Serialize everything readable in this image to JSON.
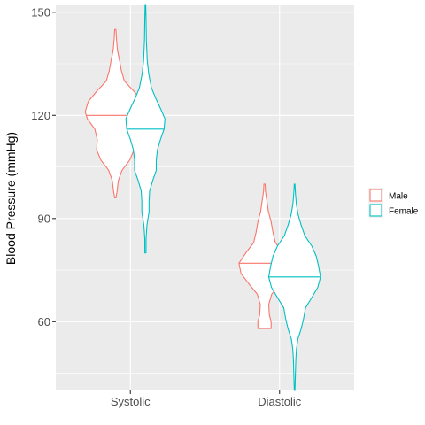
{
  "chart_data": {
    "type": "violin",
    "title": "",
    "xlabel": "",
    "ylabel": "Blood Pressure (mmHg)",
    "categories": [
      "Systolic",
      "Diastolic"
    ],
    "ylim": [
      40,
      152
    ],
    "y_ticks": [
      60,
      90,
      120,
      150
    ],
    "y_tick_labels": [
      "60",
      "90",
      "120",
      "150"
    ],
    "grid": true,
    "legend_position": "right",
    "series": [
      {
        "name": "Male",
        "color": "#F8766D",
        "groups": [
          {
            "category": "Systolic",
            "min": 96,
            "max": 145,
            "median": 120,
            "density": [
              [
                96,
                0.02
              ],
              [
                98,
                0.06
              ],
              [
                101,
                0.1
              ],
              [
                104,
                0.22
              ],
              [
                107,
                0.48
              ],
              [
                110,
                0.62
              ],
              [
                113,
                0.6
              ],
              [
                116,
                0.68
              ],
              [
                119,
                0.93
              ],
              [
                121,
                1.0
              ],
              [
                124,
                0.9
              ],
              [
                127,
                0.62
              ],
              [
                130,
                0.3
              ],
              [
                133,
                0.2
              ],
              [
                136,
                0.14
              ],
              [
                139,
                0.07
              ],
              [
                142,
                0.04
              ],
              [
                145,
                0.02
              ]
            ]
          },
          {
            "category": "Diastolic",
            "min": 58,
            "max": 100,
            "median": 77,
            "density": [
              [
                58,
                0.22
              ],
              [
                60,
                0.22
              ],
              [
                62,
                0.16
              ],
              [
                65,
                0.14
              ],
              [
                68,
                0.24
              ],
              [
                71,
                0.52
              ],
              [
                74,
                0.78
              ],
              [
                77,
                0.85
              ],
              [
                80,
                0.62
              ],
              [
                83,
                0.36
              ],
              [
                86,
                0.28
              ],
              [
                89,
                0.22
              ],
              [
                92,
                0.13
              ],
              [
                95,
                0.08
              ],
              [
                98,
                0.03
              ],
              [
                100,
                0.02
              ]
            ]
          }
        ]
      },
      {
        "name": "Female",
        "color": "#00BFC4",
        "groups": [
          {
            "category": "Systolic",
            "min": 80,
            "max": 152,
            "median": 116,
            "density": [
              [
                80,
                0.02
              ],
              [
                84,
                0.02
              ],
              [
                88,
                0.05
              ],
              [
                92,
                0.12
              ],
              [
                95,
                0.12
              ],
              [
                98,
                0.14
              ],
              [
                101,
                0.24
              ],
              [
                104,
                0.36
              ],
              [
                107,
                0.36
              ],
              [
                110,
                0.4
              ],
              [
                113,
                0.5
              ],
              [
                116,
                0.62
              ],
              [
                119,
                0.65
              ],
              [
                122,
                0.5
              ],
              [
                125,
                0.34
              ],
              [
                128,
                0.2
              ],
              [
                132,
                0.11
              ],
              [
                136,
                0.06
              ],
              [
                142,
                0.03
              ],
              [
                148,
                0.02
              ],
              [
                152,
                0.01
              ]
            ]
          },
          {
            "category": "Diastolic",
            "min": 40,
            "max": 100,
            "median": 73,
            "density": [
              [
                40,
                0.01
              ],
              [
                43,
                0.02
              ],
              [
                46,
                0.03
              ],
              [
                49,
                0.04
              ],
              [
                52,
                0.06
              ],
              [
                55,
                0.11
              ],
              [
                58,
                0.22
              ],
              [
                61,
                0.3
              ],
              [
                64,
                0.36
              ],
              [
                67,
                0.57
              ],
              [
                70,
                0.77
              ],
              [
                73,
                0.86
              ],
              [
                76,
                0.8
              ],
              [
                79,
                0.72
              ],
              [
                82,
                0.57
              ],
              [
                85,
                0.34
              ],
              [
                88,
                0.22
              ],
              [
                91,
                0.12
              ],
              [
                94,
                0.06
              ],
              [
                97,
                0.03
              ],
              [
                100,
                0.01
              ]
            ]
          }
        ]
      }
    ]
  }
}
